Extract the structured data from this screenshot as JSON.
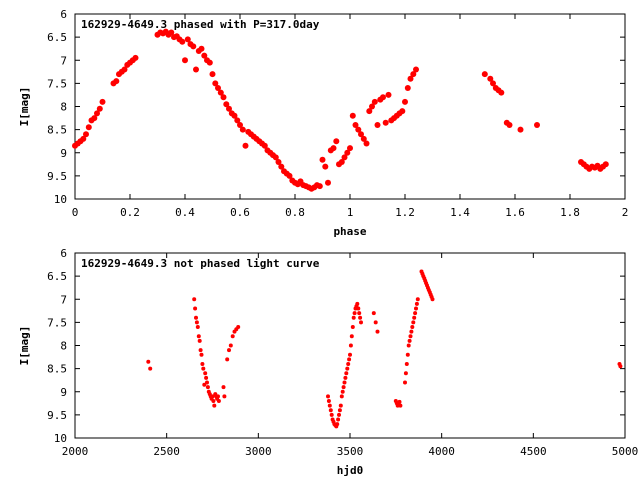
{
  "colors": {
    "points": "#ff0000",
    "axes": "#000000",
    "background": "#ffffff"
  },
  "chart_data": [
    {
      "type": "scatter",
      "title": "162929-4649.3 phased with P=317.0day",
      "xlabel": "phase",
      "ylabel": "I[mag]",
      "xlim": [
        0,
        2
      ],
      "ylim": [
        10,
        6
      ],
      "y_inverted": true,
      "grid": false,
      "legend": "none",
      "x_ticks": [
        "0",
        "0.2",
        "0.4",
        "0.6",
        "0.8",
        "1",
        "1.2",
        "1.4",
        "1.6",
        "1.8",
        "2"
      ],
      "y_ticks": [
        "6",
        "6.5",
        "7",
        "7.5",
        "8",
        "8.5",
        "9",
        "9.5",
        "10"
      ],
      "series": [
        {
          "marker": "filled-circle",
          "x": [
            0.0,
            0.01,
            0.02,
            0.03,
            0.04,
            0.05,
            0.06,
            0.07,
            0.08,
            0.09,
            0.1,
            0.14,
            0.15,
            0.16,
            0.17,
            0.18,
            0.19,
            0.2,
            0.21,
            0.22,
            0.3,
            0.31,
            0.32,
            0.33,
            0.34,
            0.35,
            0.36,
            0.37,
            0.38,
            0.39,
            0.4,
            0.41,
            0.42,
            0.43,
            0.44,
            0.45,
            0.46,
            0.47,
            0.48,
            0.49,
            0.5,
            0.51,
            0.52,
            0.53,
            0.54,
            0.55,
            0.56,
            0.57,
            0.58,
            0.59,
            0.6,
            0.61,
            0.62,
            0.63,
            0.64,
            0.65,
            0.66,
            0.67,
            0.68,
            0.69,
            0.7,
            0.71,
            0.72,
            0.73,
            0.74,
            0.75,
            0.76,
            0.77,
            0.78,
            0.79,
            0.8,
            0.81,
            0.82,
            0.83,
            0.84,
            0.85,
            0.86,
            0.87,
            0.88,
            0.89,
            0.9,
            0.91,
            0.92,
            0.93,
            0.94,
            0.95,
            0.96,
            0.97,
            0.98,
            0.99,
            1.0,
            1.01,
            1.02,
            1.03,
            1.04,
            1.05,
            1.06,
            1.07,
            1.08,
            1.09,
            1.1,
            1.11,
            1.12,
            1.13,
            1.14,
            1.15,
            1.16,
            1.17,
            1.18,
            1.19,
            1.2,
            1.21,
            1.22,
            1.23,
            1.24,
            1.49,
            1.51,
            1.52,
            1.53,
            1.54,
            1.55,
            1.57,
            1.58,
            1.62,
            1.68,
            1.84,
            1.85,
            1.86,
            1.87,
            1.88,
            1.89,
            1.9,
            1.91,
            1.92,
            1.93
          ],
          "y": [
            8.85,
            8.8,
            8.75,
            8.7,
            8.6,
            8.45,
            8.3,
            8.25,
            8.15,
            8.05,
            7.9,
            7.5,
            7.45,
            7.3,
            7.25,
            7.2,
            7.1,
            7.05,
            7.0,
            6.95,
            6.45,
            6.4,
            6.42,
            6.38,
            6.45,
            6.4,
            6.5,
            6.48,
            6.55,
            6.6,
            7.0,
            6.55,
            6.65,
            6.7,
            7.2,
            6.8,
            6.75,
            6.9,
            7.0,
            7.05,
            7.3,
            7.5,
            7.6,
            7.7,
            7.8,
            7.95,
            8.05,
            8.15,
            8.2,
            8.3,
            8.4,
            8.5,
            8.85,
            8.55,
            8.6,
            8.65,
            8.7,
            8.75,
            8.8,
            8.85,
            8.95,
            9.0,
            9.05,
            9.1,
            9.2,
            9.3,
            9.4,
            9.45,
            9.5,
            9.6,
            9.65,
            9.68,
            9.62,
            9.7,
            9.72,
            9.75,
            9.78,
            9.75,
            9.7,
            9.72,
            9.15,
            9.3,
            9.65,
            8.95,
            8.9,
            8.75,
            9.25,
            9.2,
            9.1,
            9.0,
            8.9,
            8.2,
            8.4,
            8.5,
            8.6,
            8.7,
            8.8,
            8.1,
            8.0,
            7.9,
            8.4,
            7.85,
            7.8,
            8.35,
            7.75,
            8.3,
            8.25,
            8.2,
            8.15,
            8.1,
            7.9,
            7.6,
            7.4,
            7.3,
            7.2,
            7.3,
            7.4,
            7.5,
            7.6,
            7.65,
            7.7,
            8.35,
            8.4,
            8.5,
            8.4,
            9.2,
            9.25,
            9.3,
            9.35,
            9.3,
            9.32,
            9.28,
            9.35,
            9.3,
            9.25
          ]
        }
      ]
    },
    {
      "type": "scatter",
      "title": "162929-4649.3 not phased light curve",
      "xlabel": "hjd0",
      "ylabel": "I[mag]",
      "xlim": [
        2000,
        5000
      ],
      "ylim": [
        10,
        6
      ],
      "y_inverted": true,
      "grid": false,
      "legend": "none",
      "x_ticks": [
        "2000",
        "2500",
        "3000",
        "3500",
        "4000",
        "4500",
        "5000"
      ],
      "y_ticks": [
        "6",
        "6.5",
        "7",
        "7.5",
        "8",
        "8.5",
        "9",
        "9.5",
        "10"
      ],
      "series": [
        {
          "marker": "filled-circle",
          "x": [
            2400,
            2410,
            2650,
            2655,
            2660,
            2665,
            2670,
            2675,
            2680,
            2685,
            2690,
            2695,
            2700,
            2705,
            2710,
            2715,
            2720,
            2725,
            2730,
            2735,
            2740,
            2745,
            2750,
            2755,
            2760,
            2765,
            2770,
            2775,
            2780,
            2785,
            2810,
            2815,
            2830,
            2840,
            2850,
            2860,
            2870,
            2880,
            2890,
            3380,
            3385,
            3390,
            3395,
            3400,
            3405,
            3410,
            3415,
            3420,
            3425,
            3430,
            3435,
            3440,
            3445,
            3450,
            3455,
            3460,
            3465,
            3470,
            3475,
            3480,
            3485,
            3490,
            3495,
            3500,
            3505,
            3510,
            3515,
            3520,
            3525,
            3530,
            3535,
            3540,
            3545,
            3550,
            3555,
            3560,
            3630,
            3640,
            3650,
            3750,
            3755,
            3760,
            3765,
            3770,
            3775,
            3800,
            3805,
            3810,
            3815,
            3820,
            3825,
            3830,
            3835,
            3840,
            3845,
            3850,
            3855,
            3860,
            3865,
            3870,
            3890,
            3895,
            3900,
            3905,
            3910,
            3915,
            3920,
            3925,
            3930,
            3935,
            3940,
            3945,
            3950,
            4970,
            4975
          ],
          "y": [
            8.35,
            8.5,
            7.0,
            7.2,
            7.4,
            7.5,
            7.6,
            7.8,
            7.9,
            8.1,
            8.2,
            8.4,
            8.5,
            8.85,
            8.6,
            8.7,
            8.8,
            8.9,
            9.0,
            9.05,
            9.1,
            9.15,
            9.1,
            9.2,
            9.3,
            9.05,
            9.1,
            9.15,
            9.1,
            9.2,
            8.9,
            9.1,
            8.3,
            8.1,
            8.0,
            7.8,
            7.7,
            7.65,
            7.6,
            9.1,
            9.2,
            9.3,
            9.4,
            9.5,
            9.6,
            9.65,
            9.7,
            9.72,
            9.75,
            9.7,
            9.6,
            9.5,
            9.4,
            9.3,
            9.1,
            9.0,
            8.9,
            8.8,
            8.7,
            8.6,
            8.5,
            8.4,
            8.3,
            8.2,
            8.0,
            7.8,
            7.6,
            7.4,
            7.3,
            7.2,
            7.15,
            7.1,
            7.2,
            7.3,
            7.4,
            7.5,
            7.3,
            7.5,
            7.7,
            9.2,
            9.25,
            9.3,
            9.28,
            9.22,
            9.3,
            8.8,
            8.6,
            8.4,
            8.2,
            8.0,
            7.9,
            7.8,
            7.7,
            7.6,
            7.5,
            7.4,
            7.3,
            7.2,
            7.1,
            7.0,
            6.4,
            6.45,
            6.5,
            6.55,
            6.6,
            6.65,
            6.7,
            6.75,
            6.8,
            6.85,
            6.9,
            6.95,
            7.0,
            8.4,
            8.45
          ]
        }
      ]
    }
  ]
}
